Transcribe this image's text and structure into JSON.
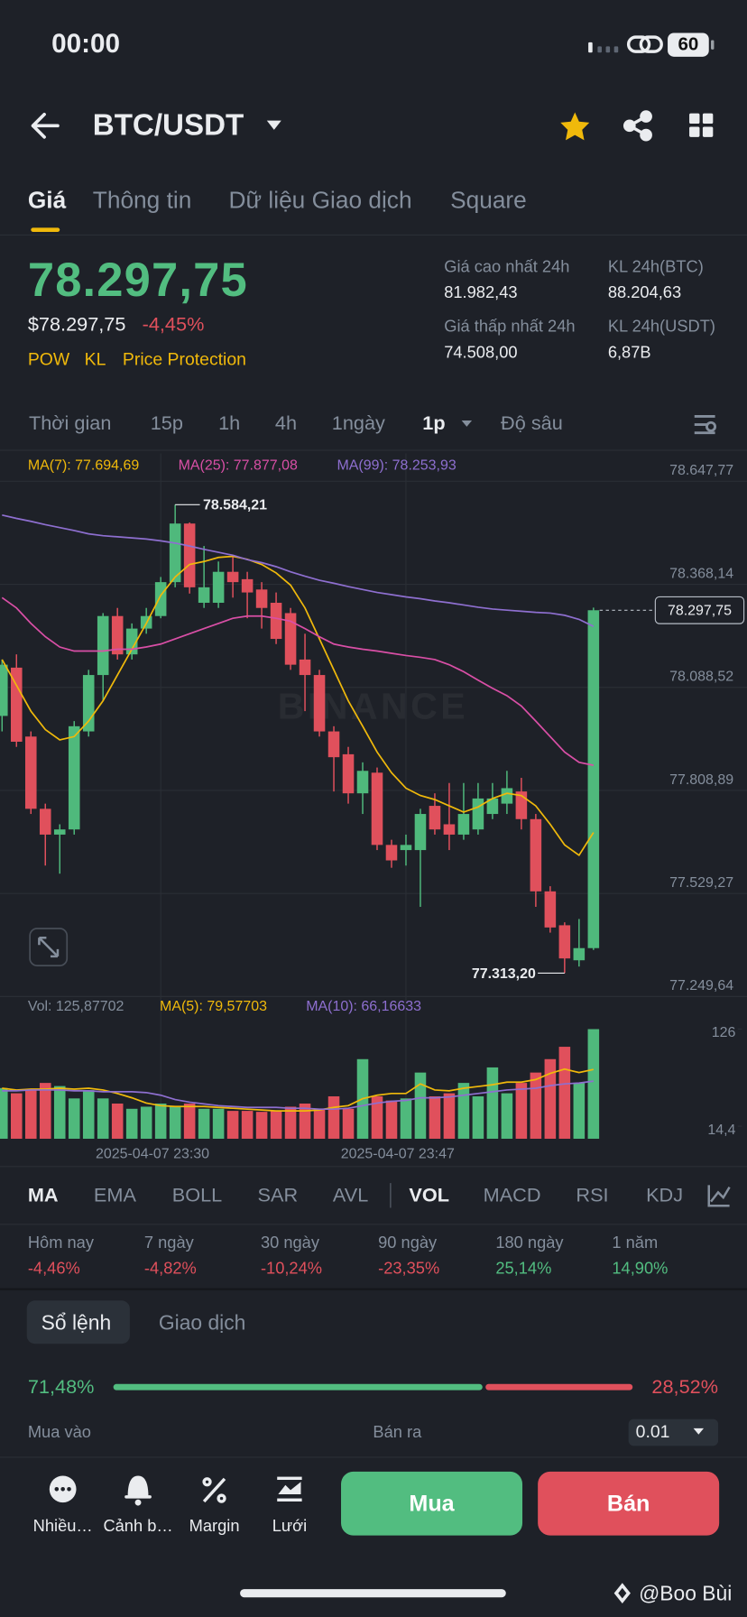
{
  "status_bar": {
    "time": "00:00",
    "battery": "60"
  },
  "header": {
    "pair": "BTC/USDT"
  },
  "tabs": [
    "Giá",
    "Thông tin",
    "Dữ liệu Giao dịch",
    "Square"
  ],
  "price": {
    "last": "78.297,75",
    "usd": "$78.297,75",
    "change": "-4,45%",
    "tags": [
      "POW",
      "KL",
      "Price Protection"
    ]
  },
  "stats": [
    {
      "label": "Giá cao nhất 24h",
      "value": "81.982,43"
    },
    {
      "label": "KL 24h(BTC)",
      "value": "88.204,63"
    },
    {
      "label": "Giá thấp nhất 24h",
      "value": "74.508,00"
    },
    {
      "label": "KL 24h(USDT)",
      "value": "6,87B"
    }
  ],
  "intervals": [
    "Thời gian",
    "15p",
    "1h",
    "4h",
    "1ngày",
    "1p",
    "Độ sâu"
  ],
  "chart_data": [
    {
      "type": "candlestick",
      "watermark": "BINANCE",
      "up_color": "#4fb97c",
      "down_color": "#e0505c",
      "open": [
        78011,
        78142,
        77955,
        77759,
        77689,
        77703,
        77969,
        78122,
        78282,
        78178,
        78248,
        78282,
        78374,
        78533,
        78318,
        78318,
        78402,
        78382,
        78354,
        78318,
        78290,
        78164,
        78122,
        77969,
        77907,
        77801,
        77857,
        77661,
        77647,
        77647,
        77767,
        77717,
        77689,
        77703,
        77745,
        77773,
        77806,
        77731,
        77535,
        77443,
        77348,
        77381
      ],
      "high": [
        78164,
        78178,
        77969,
        77773,
        77717,
        77997,
        78136,
        78290,
        78304,
        78262,
        78304,
        78388,
        78584.21,
        78536,
        78472,
        78430,
        78444,
        78402,
        78374,
        78346,
        78304,
        78234,
        78136,
        77983,
        77927,
        77885,
        77871,
        77675,
        77689,
        77759,
        77801,
        77829,
        77829,
        77829,
        77829,
        77862,
        77843,
        77745,
        77549,
        77451,
        77460,
        78305
      ],
      "low": [
        77969,
        77927,
        77745,
        77605,
        77583,
        77689,
        77955,
        78052,
        78164,
        78164,
        78234,
        78276,
        78360,
        78343,
        78304,
        78304,
        78332,
        78276,
        78248,
        78206,
        78136,
        78024,
        77955,
        77806,
        77773,
        77745,
        77647,
        77599,
        77605,
        77493,
        77689,
        77647,
        77675,
        77689,
        77731,
        77745,
        77703,
        77493,
        77423,
        77313.2,
        77331,
        77376
      ],
      "close": [
        78150,
        77941,
        77759,
        77689,
        77703,
        77983,
        78122,
        78282,
        78178,
        78248,
        78282,
        78374,
        78533,
        78360,
        78360,
        78402,
        78374,
        78346,
        78304,
        78220,
        78150,
        78122,
        77969,
        77899,
        77801,
        77862,
        77661,
        77619,
        77661,
        77745,
        77703,
        77689,
        77745,
        77787,
        77787,
        77815,
        77731,
        77535,
        77437,
        77353,
        77381,
        78297.75
      ],
      "lines": [
        {
          "name": "MA(7): 77.694,69",
          "color": "#f0b90b",
          "values": [
            78164,
            78094,
            78024,
            77974,
            77946,
            77955,
            77997,
            78052,
            78122,
            78192,
            78262,
            78338,
            78388,
            78422,
            78430,
            78441,
            78444,
            78436,
            78422,
            78399,
            78366,
            78304,
            78220,
            78136,
            78052,
            77983,
            77913,
            77857,
            77815,
            77795,
            77784,
            77767,
            77750,
            77764,
            77787,
            77801,
            77795,
            77767,
            77717,
            77661,
            77633,
            77694.69
          ]
        },
        {
          "name": "MA(25): 77.877,08",
          "color": "#d94fa6",
          "values": [
            78332,
            78304,
            78262,
            78226,
            78198,
            78187,
            78187,
            78187,
            78192,
            78192,
            78198,
            78206,
            78220,
            78234,
            78248,
            78262,
            78276,
            78282,
            78282,
            78276,
            78268,
            78248,
            78226,
            78206,
            78198,
            78192,
            78187,
            78181,
            78175,
            78170,
            78164,
            78150,
            78131,
            78108,
            78086,
            78066,
            78038,
            77997,
            77955,
            77913,
            77885,
            77877.08
          ]
        },
        {
          "name": "MA(99): 78.253,93",
          "color": "#8e6fd0",
          "values": [
            78556,
            78547,
            78539,
            78530,
            78522,
            78514,
            78505,
            78500,
            78497,
            78494,
            78491,
            78486,
            78480,
            78472,
            78463,
            78455,
            78447,
            78435,
            78427,
            78416,
            78402,
            78390,
            78379,
            78371,
            78362,
            78354,
            78346,
            78340,
            78334,
            78329,
            78323,
            78318,
            78312,
            78306,
            78301,
            78298,
            78295,
            78292,
            78290,
            78284,
            78273,
            78253.93
          ]
        }
      ],
      "ylim": [
        77249.64,
        78723.2
      ],
      "yticks": [
        {
          "value": 78647.77,
          "label": "78.647,77"
        },
        {
          "value": 78368.14,
          "label": "78.368,14"
        },
        {
          "value": 78088.52,
          "label": "78.088,52"
        },
        {
          "value": 77808.89,
          "label": "77.808,89"
        },
        {
          "value": 77529.27,
          "label": "77.529,27"
        },
        {
          "value": 77249.64,
          "label": "77.249,64"
        }
      ],
      "last_price": {
        "value": 78297.75,
        "label": "78.297,75"
      },
      "high_label": {
        "value": 78584.21,
        "label": "78.584,21"
      },
      "low_label": {
        "value": 77313.2,
        "label": "77.313,20"
      }
    },
    {
      "type": "bar",
      "title": "Vol: 125,87702",
      "categories": [
        null,
        null,
        null,
        null,
        null,
        null,
        null,
        null,
        null,
        null,
        null,
        "2025-04-07 23:30",
        null,
        null,
        null,
        null,
        null,
        null,
        null,
        null,
        null,
        null,
        null,
        null,
        null,
        null,
        null,
        null,
        "2025-04-07 23:47",
        null,
        null,
        null,
        null,
        null,
        null,
        null,
        null,
        null,
        null,
        null,
        null,
        null
      ],
      "values": [
        58.2,
        52.2,
        55.8,
        64.1,
        60.5,
        46.3,
        55.8,
        46.3,
        40.4,
        34.4,
        36.8,
        40.4,
        36.8,
        40.4,
        34.4,
        34.4,
        32,
        32,
        30.9,
        32,
        36.8,
        40.4,
        34.4,
        48.7,
        34.4,
        91.4,
        48.7,
        43.9,
        46.3,
        76,
        48.7,
        52.2,
        64.1,
        48.7,
        81.9,
        52.2,
        64.1,
        76,
        91.4,
        105.6,
        64.1,
        125.87702
      ],
      "lines": [
        {
          "name": "MA(5): 79,57703",
          "color": "#f0b90b",
          "values": [
            58,
            56,
            57,
            57,
            58,
            57,
            58,
            56,
            52,
            47,
            41,
            38,
            37,
            37,
            37,
            36,
            35,
            34,
            33,
            32,
            32,
            32,
            33,
            36,
            38,
            46,
            50,
            52,
            52,
            63,
            56,
            55,
            58,
            60,
            62,
            65,
            65,
            68,
            75,
            80,
            76,
            79.57703
          ]
        },
        {
          "name": "MA(10): 66,16633",
          "color": "#8e6fd0",
          "values": [
            55,
            55,
            56,
            56,
            56,
            55,
            55,
            54,
            54,
            54,
            53,
            50,
            45,
            42,
            40,
            38,
            37,
            36,
            36,
            36,
            35,
            35,
            34,
            34,
            35,
            38,
            41,
            43,
            44,
            47,
            47,
            48,
            50,
            52,
            54,
            56,
            57,
            58,
            61,
            63,
            64,
            66.16633
          ]
        }
      ],
      "ylim": [
        0,
        142
      ],
      "yticks": [
        126,
        {
          "value": 14.4,
          "label": "14,4"
        }
      ]
    }
  ],
  "indicators": [
    "MA",
    "EMA",
    "BOLL",
    "SAR",
    "AVL",
    "VOL",
    "MACD",
    "RSI",
    "KDJ"
  ],
  "performance": [
    {
      "label": "Hôm nay",
      "value": "-4,46%"
    },
    {
      "label": "7 ngày",
      "value": "-4,82%"
    },
    {
      "label": "30 ngày",
      "value": "-10,24%"
    },
    {
      "label": "90 ngày",
      "value": "-23,35%"
    },
    {
      "label": "180 ngày",
      "value": "25,14%"
    },
    {
      "label": "1 năm",
      "value": "14,90%"
    }
  ],
  "order_book": {
    "tabs": [
      "Sổ lệnh",
      "Giao dịch"
    ],
    "buy_ratio": {
      "value": 71.48,
      "label": "71,48%"
    },
    "sell_ratio": {
      "value": 28.52,
      "label": "28,52%"
    },
    "buy_label": "Mua vào",
    "sell_label": "Bán ra",
    "precision": "0.01"
  },
  "bottom_bar": {
    "items": [
      "Nhiều…",
      "Cảnh b…",
      "Margin",
      "Lưới"
    ],
    "buy": "Mua",
    "sell": "Bán"
  },
  "watermark": "@Boo Bùi"
}
